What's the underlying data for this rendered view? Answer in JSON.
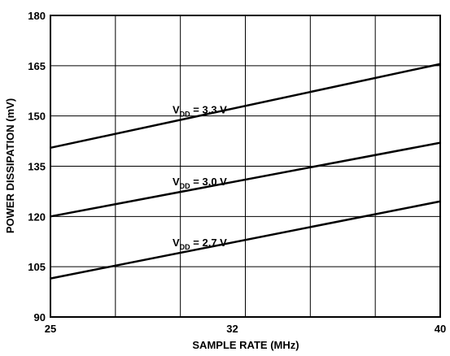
{
  "chart_data": {
    "type": "line",
    "title": "",
    "xlabel": "SAMPLE RATE (MHz)",
    "ylabel": "POWER DISSIPATION (mV)",
    "xlim": [
      25,
      40
    ],
    "ylim": [
      90,
      180
    ],
    "x_ticks": [
      25,
      32,
      40
    ],
    "x_grid": [
      25,
      27.5,
      30,
      32.5,
      35,
      37.5,
      40
    ],
    "y_ticks": [
      90,
      105,
      120,
      135,
      150,
      165,
      180
    ],
    "grid": true,
    "legend": "inline labels on each line",
    "line_color": "#000000",
    "series": [
      {
        "name": "V_DD = 3.3 V",
        "label_main": "V",
        "label_sub": "DD",
        "label_rest": " = 3.3 V",
        "x": [
          25,
          40
        ],
        "y": [
          140.5,
          165.5
        ]
      },
      {
        "name": "V_DD = 3.0 V",
        "label_main": "V",
        "label_sub": "DD",
        "label_rest": " = 3.0 V",
        "x": [
          25,
          40
        ],
        "y": [
          120,
          142
        ]
      },
      {
        "name": "V_DD = 2.7 V",
        "label_main": "V",
        "label_sub": "DD",
        "label_rest": " = 2.7 V",
        "x": [
          25,
          40
        ],
        "y": [
          101.5,
          124.5
        ]
      }
    ]
  }
}
